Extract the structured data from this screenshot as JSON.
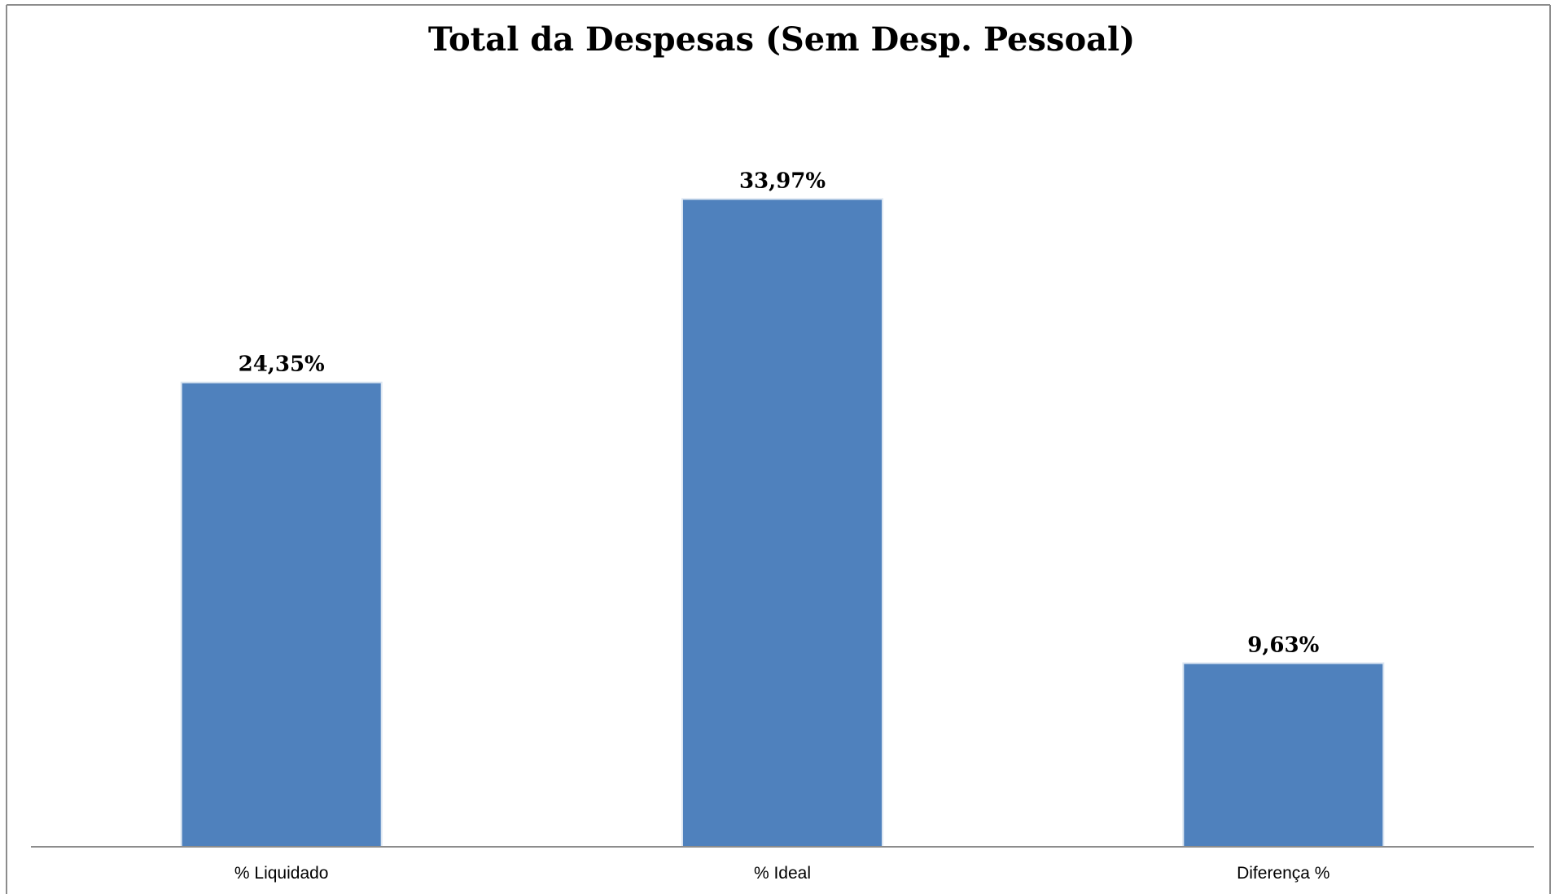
{
  "chart_data": {
    "type": "bar",
    "title": "Total da Despesas (Sem Desp. Pessoal)",
    "categories": [
      "% Liquidado",
      "% Ideal",
      "Diferença %"
    ],
    "values": [
      24.35,
      33.97,
      9.63
    ],
    "data_labels": [
      "24,35%",
      "33,97%",
      "9,63%"
    ],
    "xlabel": "",
    "ylabel": "",
    "ylim": [
      0,
      40
    ],
    "grid": false,
    "legend": "none",
    "colors": {
      "bar": "#4F81BD",
      "bar_edge": "#DCE6F2",
      "axis": "#8C8C8C",
      "frame": "#8C8C8C"
    }
  }
}
